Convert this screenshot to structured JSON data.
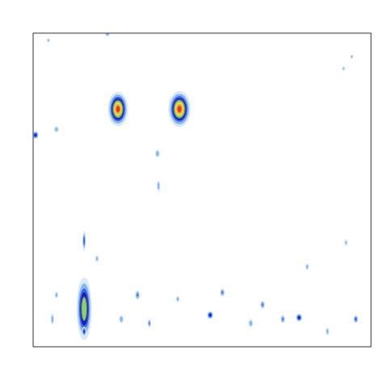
{
  "chart_data": {
    "type": "contour",
    "tick_labels": false,
    "xlim": [
      0,
      1
    ],
    "ylim": [
      0,
      1
    ],
    "x": [
      0.251,
      0.433,
      0.151,
      0.151,
      0.151,
      0.007,
      0.368,
      0.371,
      0.524,
      0.787,
      0.56,
      0.679,
      0.955,
      0.309,
      0.189,
      0.057,
      0.22,
      0.069,
      0.811,
      0.261,
      0.644,
      0.919,
      0.943,
      0.428,
      0.739,
      0.069,
      0.344,
      0.871,
      0.926,
      0.045
    ],
    "y": [
      0.758,
      0.758,
      0.121,
      0.338,
      0.049,
      0.675,
      0.616,
      0.513,
      0.101,
      0.093,
      0.173,
      0.134,
      0.088,
      0.165,
      0.281,
      0.088,
      0.997,
      0.693,
      0.255,
      0.088,
      0.075,
      0.887,
      0.925,
      0.152,
      0.088,
      0.165,
      0.075,
      0.049,
      0.332,
      0.977
    ],
    "values": [
      1.0,
      1.0,
      0.65,
      0.3,
      0.35,
      0.4,
      0.2,
      0.2,
      0.4,
      0.4,
      0.25,
      0.25,
      0.3,
      0.25,
      0.2,
      0.2,
      0.2,
      0.2,
      0.2,
      0.2,
      0.2,
      0.15,
      0.15,
      0.2,
      0.25,
      0.2,
      0.25,
      0.2,
      0.15,
      0.15
    ],
    "widths": [
      0.06,
      0.066,
      0.045,
      0.01,
      0.014,
      0.019,
      0.014,
      0.01,
      0.019,
      0.019,
      0.014,
      0.014,
      0.014,
      0.014,
      0.01,
      0.01,
      0.014,
      0.014,
      0.01,
      0.014,
      0.014,
      0.01,
      0.01,
      0.01,
      0.014,
      0.01,
      0.01,
      0.01,
      0.01,
      0.01
    ],
    "heights": [
      0.11,
      0.115,
      0.2,
      0.062,
      0.031,
      0.026,
      0.026,
      0.036,
      0.026,
      0.026,
      0.026,
      0.026,
      0.026,
      0.031,
      0.021,
      0.036,
      0.015,
      0.021,
      0.021,
      0.026,
      0.026,
      0.015,
      0.015,
      0.021,
      0.026,
      0.021,
      0.026,
      0.026,
      0.021,
      0.015
    ]
  }
}
